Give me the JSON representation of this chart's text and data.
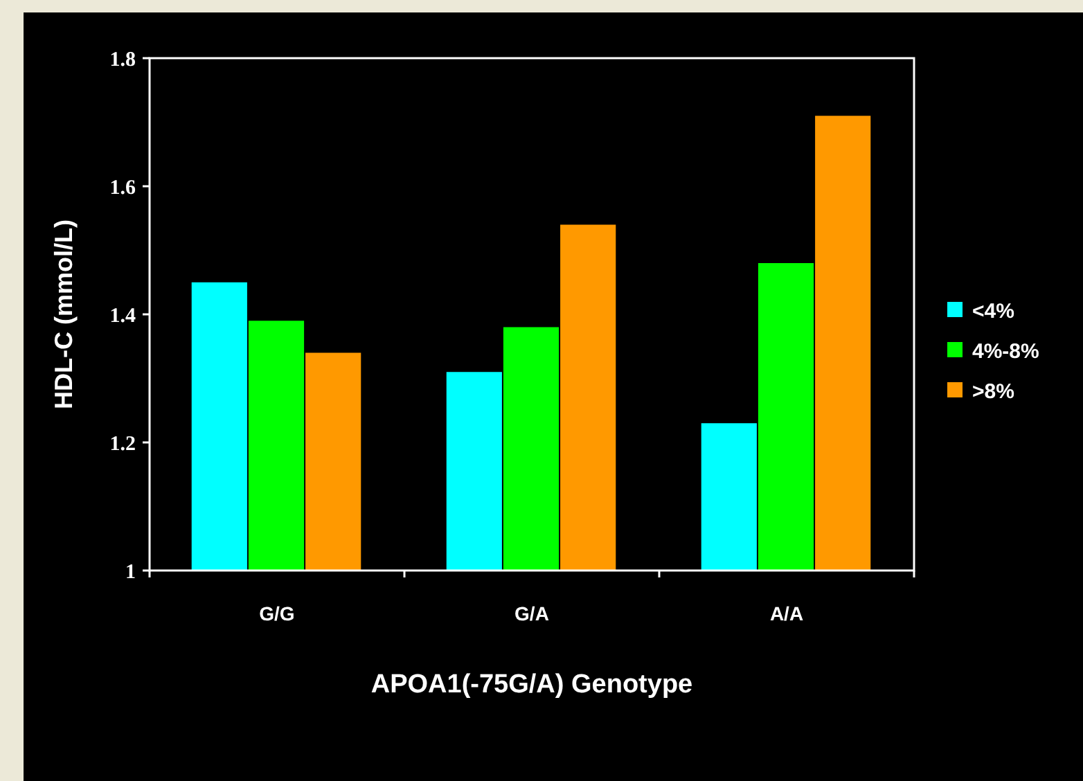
{
  "chart_data": {
    "type": "bar",
    "xlabel": "APOA1(-75G/A) Genotype",
    "ylabel": "HDL-C (mmol/L)",
    "categories": [
      "G/G",
      "G/A",
      "A/A"
    ],
    "series": [
      {
        "name": "<4%",
        "color": "#00ffff",
        "values": [
          1.45,
          1.31,
          1.23
        ]
      },
      {
        "name": "4%-8%",
        "color": "#00ff00",
        "values": [
          1.39,
          1.38,
          1.48
        ]
      },
      {
        "name": ">8%",
        "color": "#ff9900",
        "values": [
          1.34,
          1.54,
          1.71
        ]
      }
    ],
    "ylim": [
      1,
      1.8
    ],
    "yticks": [
      1,
      1.2,
      1.4,
      1.6,
      1.8
    ],
    "legend": "right",
    "grid": false
  }
}
